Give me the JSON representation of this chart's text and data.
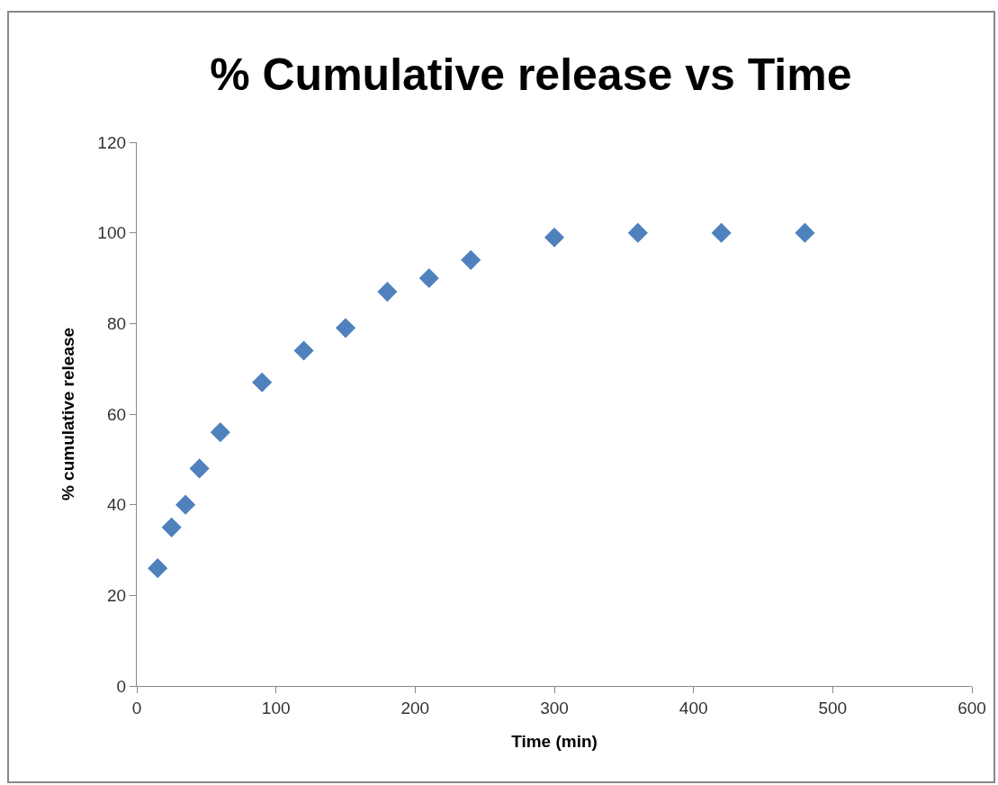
{
  "chart_data": {
    "type": "scatter",
    "title": "% Cumulative release vs Time",
    "xlabel": "Time (min)",
    "ylabel": "% cumulative release",
    "x": [
      15,
      25,
      35,
      45,
      60,
      90,
      120,
      150,
      180,
      210,
      240,
      300,
      360,
      420,
      480
    ],
    "series": [
      {
        "color": "#4f81bd",
        "values": [
          26,
          35,
          40,
          48,
          56,
          67,
          74,
          79,
          87,
          90,
          94,
          99,
          100,
          100,
          100
        ]
      }
    ],
    "xlim": [
      0,
      600
    ],
    "xticks": [
      0,
      100,
      200,
      300,
      400,
      500,
      600
    ],
    "ylim": [
      0,
      120
    ],
    "yticks": [
      0,
      20,
      40,
      60,
      80,
      100,
      120
    ],
    "grid": false,
    "legend": false,
    "marker": "diamond"
  }
}
